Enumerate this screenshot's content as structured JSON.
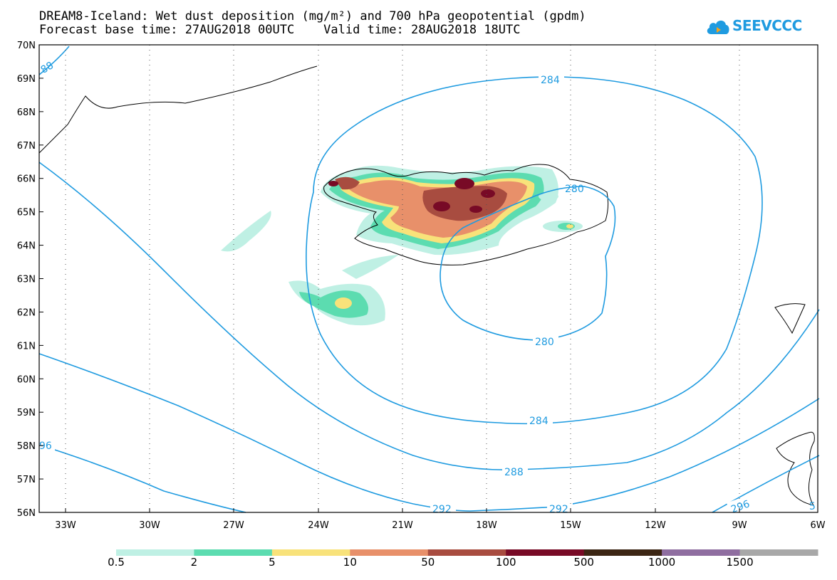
{
  "header": {
    "title_line1": "DREAM8-Iceland: Wet dust deposition (mg/m²) and 700 hPa geopotential (gpdm)",
    "title_line2": "Forecast base time: 27AUG2018 00UTC    Valid time: 28AUG2018 18UTC"
  },
  "logo": {
    "text": "SEEVCCC",
    "icon": "cloud-logo-icon"
  },
  "map": {
    "lat_labels": [
      "70N",
      "69N",
      "68N",
      "67N",
      "66N",
      "65N",
      "64N",
      "63N",
      "62N",
      "61N",
      "60N",
      "59N",
      "58N",
      "57N",
      "56N"
    ],
    "lon_labels": [
      "33W",
      "30W",
      "27W",
      "24W",
      "21W",
      "18W",
      "15W",
      "12W",
      "9W",
      "6W"
    ],
    "contour_labels": [
      "284",
      "280",
      "280",
      "284",
      "288",
      "292",
      "292",
      "296",
      "88",
      "96",
      "5"
    ],
    "contour_color": "#1f9be0"
  },
  "legend": {
    "labels": [
      "0.5",
      "2",
      "5",
      "10",
      "50",
      "100",
      "500",
      "1000",
      "1500"
    ],
    "colors": [
      "#bff0e4",
      "#5cdcb0",
      "#f8e27a",
      "#e8906a",
      "#a84c40",
      "#780a26",
      "#3c2614",
      "#8f6ea0",
      "#a8a8a8"
    ]
  }
}
